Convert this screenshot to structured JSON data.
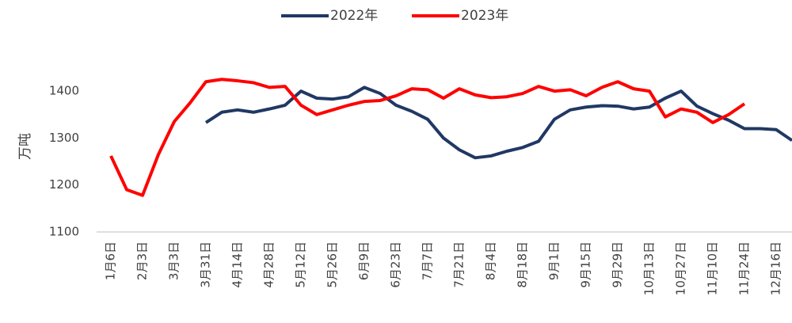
{
  "chart_data": {
    "type": "line",
    "y_label": "万吨",
    "categories": [
      "1月6日",
      null,
      "2月3日",
      null,
      "3月3日",
      null,
      "3月31日",
      null,
      "4月14日",
      null,
      "4月28日",
      null,
      "5月12日",
      null,
      "5月26日",
      null,
      "6月9日",
      null,
      "6月23日",
      null,
      "7月7日",
      null,
      "7月21日",
      null,
      "8月4日",
      null,
      "8月18日",
      null,
      "9月1日",
      null,
      "9月15日",
      null,
      "9月29日",
      null,
      "10月13日",
      null,
      "10月27日",
      null,
      "11月10日",
      null,
      "11月24日",
      null,
      "12月16日",
      null
    ],
    "series": [
      {
        "name": "2022年",
        "color": "#203864",
        "values": [
          null,
          null,
          null,
          null,
          null,
          null,
          1333,
          1355,
          1360,
          1355,
          1362,
          1370,
          1400,
          1385,
          1383,
          1388,
          1408,
          1395,
          1370,
          1357,
          1340,
          1300,
          1275,
          1258,
          1262,
          1272,
          1280,
          1293,
          1340,
          1360,
          1366,
          1369,
          1368,
          1362,
          1366,
          1385,
          1400,
          1368,
          1352,
          1338,
          1320,
          1320,
          1318,
          1295
        ]
      },
      {
        "name": "2023年",
        "color": "#ff0000",
        "values": [
          1262,
          1190,
          1178,
          1265,
          1335,
          1375,
          1420,
          1425,
          1422,
          1418,
          1408,
          1410,
          1370,
          1350,
          1360,
          1370,
          1378,
          1380,
          1390,
          1405,
          1403,
          1385,
          1405,
          1392,
          1386,
          1388,
          1395,
          1410,
          1400,
          1403,
          1390,
          1408,
          1420,
          1405,
          1400,
          1345,
          1362,
          1355,
          1333,
          1350,
          1373,
          null,
          null,
          null
        ]
      }
    ],
    "ylim": [
      1100,
      1500
    ],
    "yticks": [
      1100,
      1200,
      1300,
      1400
    ],
    "legend": "top"
  }
}
